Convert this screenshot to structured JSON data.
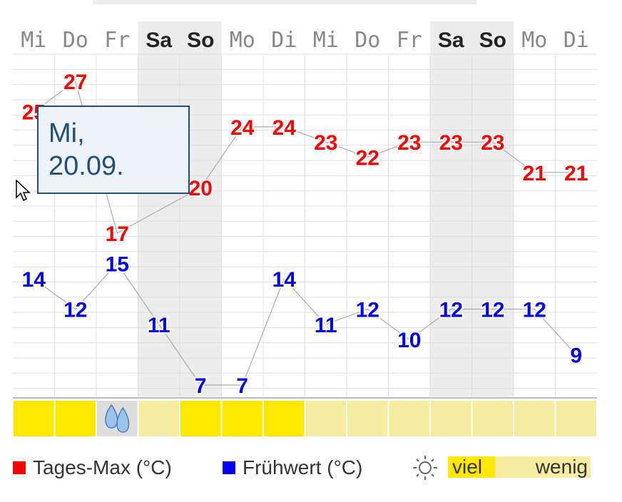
{
  "chart_data": {
    "type": "line",
    "categories": [
      "Mi",
      "Do",
      "Fr",
      "Sa",
      "So",
      "Mo",
      "Di",
      "Mi",
      "Do",
      "Fr",
      "Sa",
      "So",
      "Mo",
      "Di"
    ],
    "weekend": [
      false,
      false,
      false,
      true,
      true,
      false,
      false,
      false,
      false,
      false,
      true,
      true,
      false,
      false
    ],
    "series": [
      {
        "name": "Tages-Max (°C)",
        "color": "#ff0000",
        "values": [
          25,
          27,
          17,
          null,
          20,
          24,
          24,
          23,
          22,
          23,
          23,
          23,
          21,
          21
        ]
      },
      {
        "name": "Frühwert (°C)",
        "color": "#0000ee",
        "values": [
          14,
          12,
          15,
          11,
          7,
          7,
          14,
          11,
          12,
          10,
          12,
          12,
          12,
          9
        ]
      }
    ],
    "ylim": [
      5,
      28
    ],
    "grid": true,
    "sunshine": [
      "viel",
      "viel",
      "rain-icon",
      "wenig",
      "viel",
      "viel",
      "viel",
      "wenig",
      "wenig",
      "wenig",
      "wenig",
      "wenig",
      "wenig",
      "wenig"
    ],
    "title": "",
    "xlabel": "",
    "ylabel": ""
  },
  "tooltip": {
    "line1": "Mi,",
    "line2": "20.09."
  },
  "legend": {
    "max_label": "Tages-Max (°C)",
    "early_label": "Frühwert (°C)",
    "sun_icon": "sun-icon",
    "sun_high": "viel",
    "sun_low": "wenig"
  },
  "colors": {
    "max": "#ff0000",
    "early": "#0000ee",
    "sun_high": "#ffe800",
    "sun_low": "#f5eca0",
    "weekend_bg": "#ececec"
  }
}
